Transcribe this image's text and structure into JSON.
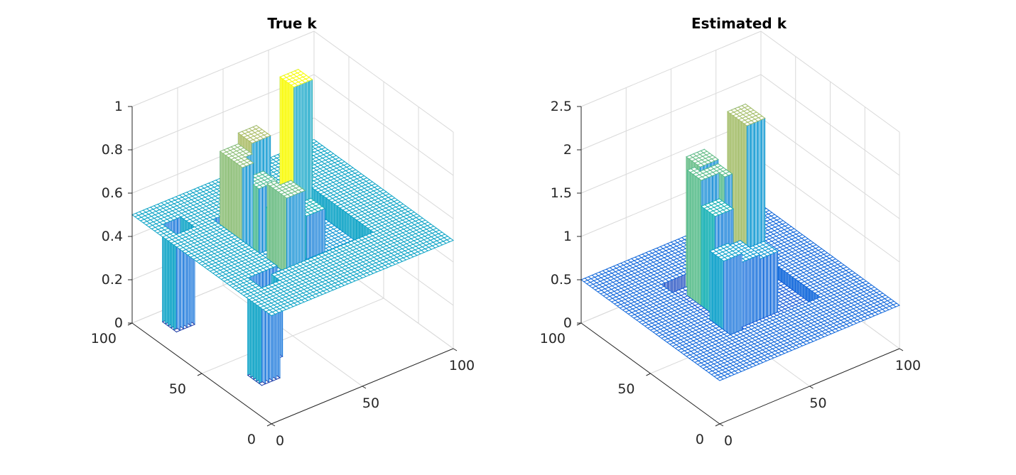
{
  "chart_data": [
    {
      "type": "surface",
      "title": "True k",
      "xlabel": "",
      "ylabel": "",
      "zlabel": "",
      "x_ticks": [
        "0",
        "50",
        "100"
      ],
      "y_ticks": [
        "0",
        "50",
        "100"
      ],
      "z_ticks": [
        "0",
        "0.2",
        "0.4",
        "0.6",
        "0.8",
        "1"
      ],
      "xlim": [
        0,
        100
      ],
      "ylim": [
        0,
        100
      ],
      "zlim": [
        0,
        1
      ],
      "grid": true,
      "colormap": "parula",
      "background_level": 0.5,
      "blocks": [
        {
          "x": [
            25,
            75
          ],
          "y": [
            25,
            75
          ],
          "z": 0.4
        },
        {
          "x": [
            30,
            45
          ],
          "y": [
            60,
            75
          ],
          "z": 0.8
        },
        {
          "x": [
            40,
            50
          ],
          "y": [
            65,
            75
          ],
          "z": 0.85
        },
        {
          "x": [
            35,
            45
          ],
          "y": [
            55,
            65
          ],
          "z": 0.7
        },
        {
          "x": [
            35,
            45
          ],
          "y": [
            35,
            50
          ],
          "z": 0.75
        },
        {
          "x": [
            40,
            50
          ],
          "y": [
            45,
            55
          ],
          "z": 0.6
        },
        {
          "x": [
            50,
            60
          ],
          "y": [
            40,
            50
          ],
          "z": 0.6
        },
        {
          "x": [
            65,
            75
          ],
          "y": [
            70,
            80
          ],
          "z": 1.0
        },
        {
          "x": [
            10,
            20
          ],
          "y": [
            20,
            30
          ],
          "z": 0.05
        },
        {
          "x": [
            15,
            25
          ],
          "y": [
            25,
            30
          ],
          "z": 0.1
        },
        {
          "x": [
            5,
            15
          ],
          "y": [
            75,
            85
          ],
          "z": 0.05
        }
      ]
    },
    {
      "type": "surface",
      "title": "Estimated k",
      "xlabel": "",
      "ylabel": "",
      "zlabel": "",
      "x_ticks": [
        "0",
        "50",
        "100"
      ],
      "y_ticks": [
        "0",
        "50",
        "100"
      ],
      "z_ticks": [
        "0",
        "0.5",
        "1",
        "1.5",
        "2",
        "2.5"
      ],
      "xlim": [
        0,
        100
      ],
      "ylim": [
        0,
        100
      ],
      "zlim": [
        0,
        2.5
      ],
      "grid": true,
      "colormap": "parula",
      "background_level": 0.5,
      "blocks": [
        {
          "x": [
            25,
            75
          ],
          "y": [
            25,
            75
          ],
          "z": 0.35
        },
        {
          "x": [
            35,
            50
          ],
          "y": [
            55,
            70
          ],
          "z": 1.8
        },
        {
          "x": [
            40,
            50
          ],
          "y": [
            65,
            75
          ],
          "z": 1.85
        },
        {
          "x": [
            35,
            45
          ],
          "y": [
            50,
            60
          ],
          "z": 1.5
        },
        {
          "x": [
            30,
            40
          ],
          "y": [
            35,
            45
          ],
          "z": 1.2
        },
        {
          "x": [
            40,
            50
          ],
          "y": [
            35,
            50
          ],
          "z": 1.1
        },
        {
          "x": [
            50,
            60
          ],
          "y": [
            35,
            45
          ],
          "z": 1.05
        },
        {
          "x": [
            65,
            75
          ],
          "y": [
            65,
            80
          ],
          "z": 2.1
        },
        {
          "x": [
            30,
            40
          ],
          "y": [
            30,
            35
          ],
          "z": 0.1
        }
      ]
    }
  ]
}
